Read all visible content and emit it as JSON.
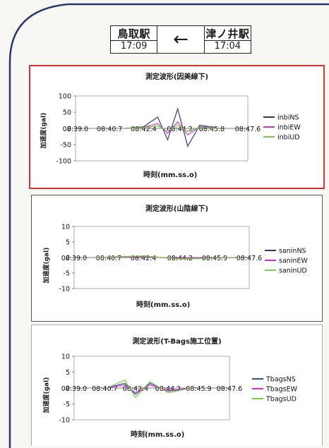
{
  "header": {
    "left_station": "鳥取駅",
    "left_time": "17:09",
    "right_station": "津ノ井駅",
    "right_time": "17:04",
    "arrow": "←"
  },
  "colors": {
    "ns": "#2b3a7a",
    "ew": "#cc33cc",
    "ud": "#77cc44",
    "ns3": "#3a4a8a",
    "highlight_border": "#d8332f"
  },
  "chart_data": [
    {
      "type": "line",
      "title": "測定波形(因美線下)",
      "xlabel": "時刻(mm.ss.o)",
      "ylabel": "加速度(gal)",
      "x_ticks": [
        "08:39.0",
        "08:40.7",
        "08:42.4",
        "08:44.2",
        "08:45.8",
        "08:47.6"
      ],
      "y_ticks": [
        100,
        50,
        0,
        -50,
        -100
      ],
      "ylim": [
        -100,
        100
      ],
      "legend": "right",
      "series": [
        {
          "name": "inbiNS",
          "x": [
            "08:41.5",
            "08:42.4",
            "08:43.1",
            "08:43.6",
            "08:44.1",
            "08:44.6",
            "08:45.2",
            "08:46.2"
          ],
          "values": [
            0,
            5,
            35,
            -35,
            60,
            -55,
            10,
            0
          ]
        },
        {
          "name": "inbiEW",
          "x": [
            "08:41.5",
            "08:42.4",
            "08:43.1",
            "08:43.6",
            "08:44.1",
            "08:44.6",
            "08:45.2",
            "08:46.2"
          ],
          "values": [
            0,
            3,
            15,
            -15,
            20,
            -20,
            5,
            0
          ]
        },
        {
          "name": "inbiUD",
          "x": [
            "08:41.5",
            "08:42.4",
            "08:43.1",
            "08:43.6",
            "08:44.1",
            "08:44.6",
            "08:45.2",
            "08:46.2"
          ],
          "values": [
            0,
            2,
            8,
            -8,
            10,
            -10,
            3,
            0
          ]
        }
      ]
    },
    {
      "type": "line",
      "title": "測定波形(山陰線下)",
      "xlabel": "時刻(mm.ss.o)",
      "ylabel": "加速度(gal)",
      "x_ticks": [
        "08:39.0",
        "08:40.7",
        "08:42.4",
        "08:44.2",
        "08:45.9",
        "08:47.6"
      ],
      "y_ticks": [
        10,
        5,
        0,
        -5,
        -10
      ],
      "ylim": [
        -10,
        10
      ],
      "legend": "right",
      "series": [
        {
          "name": "saninNS",
          "x": [
            "08:40.0",
            "08:42.4",
            "08:44.2",
            "08:47.0"
          ],
          "values": [
            0,
            0.4,
            -0.4,
            0
          ]
        },
        {
          "name": "saninEW",
          "x": [
            "08:40.0",
            "08:42.4",
            "08:44.2",
            "08:47.0"
          ],
          "values": [
            0,
            0.3,
            -0.3,
            0
          ]
        },
        {
          "name": "saninUD",
          "x": [
            "08:40.0",
            "08:42.4",
            "08:44.2",
            "08:47.0"
          ],
          "values": [
            0,
            0.5,
            -0.5,
            0
          ]
        }
      ]
    },
    {
      "type": "line",
      "title": "測定波形(T-Bags施工位置)",
      "xlabel": "時刻(mm.ss.o)",
      "ylabel": "加速度(gal)",
      "x_ticks": [
        "08:39.0",
        "08:40.7",
        "08:42.4",
        "08:44.2",
        "08:45.9",
        "08:47.6"
      ],
      "y_ticks": [
        10,
        5,
        0,
        -5,
        -10
      ],
      "ylim": [
        -10,
        10
      ],
      "legend": "right",
      "series": [
        {
          "name": "TbagsNS",
          "x": [
            "08:40.8",
            "08:41.8",
            "08:42.4",
            "08:43.2",
            "08:44.2",
            "08:45.5"
          ],
          "values": [
            0,
            1.5,
            -2,
            1.5,
            -1,
            0
          ]
        },
        {
          "name": "TbagsEW",
          "x": [
            "08:40.8",
            "08:41.8",
            "08:42.4",
            "08:43.2",
            "08:44.2",
            "08:45.5"
          ],
          "values": [
            0,
            1,
            -1.5,
            1,
            -0.8,
            0
          ]
        },
        {
          "name": "TbagsUD",
          "x": [
            "08:40.8",
            "08:41.8",
            "08:42.4",
            "08:43.2",
            "08:44.2",
            "08:45.5"
          ],
          "values": [
            0,
            2.5,
            -3,
            2,
            -1.5,
            0
          ]
        }
      ]
    }
  ]
}
